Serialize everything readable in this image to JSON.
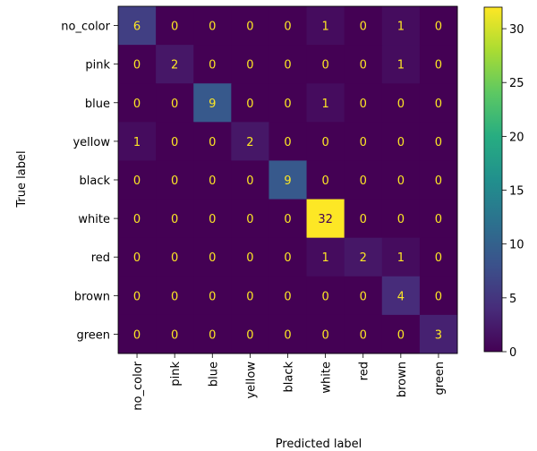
{
  "chart_data": {
    "type": "heatmap",
    "title": "",
    "xlabel": "Predicted label",
    "ylabel": "True label",
    "x_categories": [
      "no_color",
      "pink",
      "blue",
      "yellow",
      "black",
      "white",
      "red",
      "brown",
      "green"
    ],
    "y_categories": [
      "no_color",
      "pink",
      "blue",
      "yellow",
      "black",
      "white",
      "red",
      "brown",
      "green"
    ],
    "values": [
      [
        6,
        0,
        0,
        0,
        0,
        1,
        0,
        1,
        0
      ],
      [
        0,
        2,
        0,
        0,
        0,
        0,
        0,
        1,
        0
      ],
      [
        0,
        0,
        9,
        0,
        0,
        1,
        0,
        0,
        0
      ],
      [
        1,
        0,
        0,
        2,
        0,
        0,
        0,
        0,
        0
      ],
      [
        0,
        0,
        0,
        0,
        9,
        0,
        0,
        0,
        0
      ],
      [
        0,
        0,
        0,
        0,
        0,
        32,
        0,
        0,
        0
      ],
      [
        0,
        0,
        0,
        0,
        0,
        1,
        2,
        1,
        0
      ],
      [
        0,
        0,
        0,
        0,
        0,
        0,
        0,
        4,
        0
      ],
      [
        0,
        0,
        0,
        0,
        0,
        0,
        0,
        0,
        3
      ]
    ],
    "colormap": "viridis",
    "colorbar": {
      "range": [
        0,
        32
      ],
      "ticks": [
        0,
        5,
        10,
        15,
        20,
        25,
        30
      ]
    },
    "grid": false
  }
}
